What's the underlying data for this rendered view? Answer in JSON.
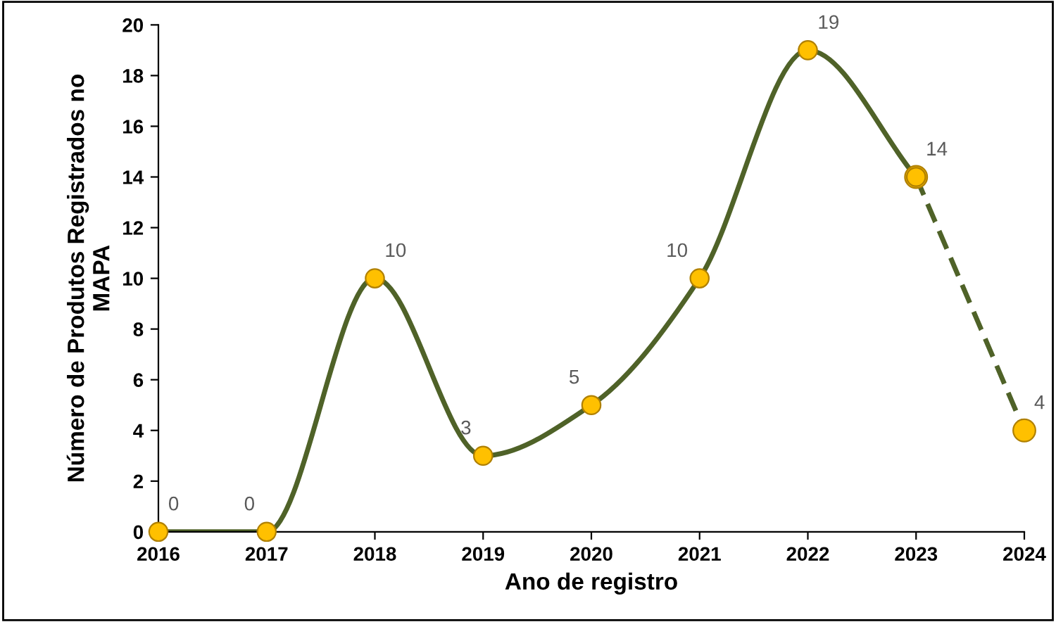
{
  "chart_data": {
    "type": "line",
    "xlabel": "Ano de registro",
    "ylabel": "Número de Produtos Registrados no\nMAPA",
    "categories": [
      "2016",
      "2017",
      "2018",
      "2019",
      "2020",
      "2021",
      "2022",
      "2023",
      "2024"
    ],
    "series": [
      {
        "color": "#4f6228",
        "line_style": "solid",
        "values": [
          0,
          0,
          10,
          3,
          5,
          10,
          19,
          14,
          null
        ],
        "value_labels": [
          "0",
          "0",
          "10",
          "3",
          "5",
          "10",
          "19",
          "14",
          null
        ]
      },
      {
        "color": "#4f6228",
        "line_style": "dashed",
        "values": [
          null,
          null,
          null,
          null,
          null,
          null,
          null,
          14,
          4
        ],
        "value_labels": [
          null,
          null,
          null,
          null,
          null,
          null,
          null,
          null,
          "4"
        ]
      }
    ],
    "marker": "circle",
    "ylim": [
      0,
      20
    ],
    "yticks": [
      0,
      2,
      4,
      6,
      8,
      10,
      12,
      14,
      16,
      18,
      20
    ],
    "grid": false,
    "legend": false
  }
}
